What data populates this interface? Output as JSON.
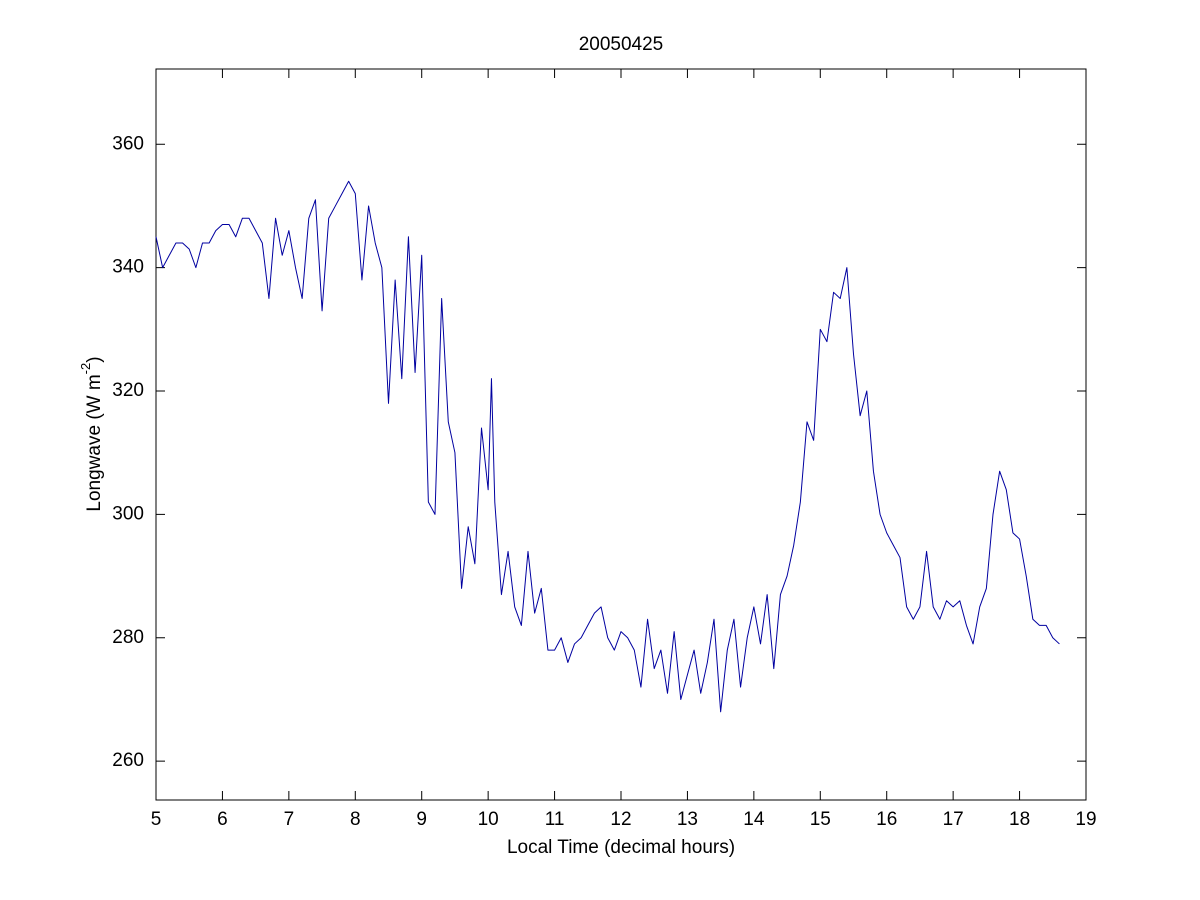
{
  "chart_data": {
    "type": "line",
    "title": "20050425",
    "xlabel": "Local Time (decimal hours)",
    "ylabel": [
      "Longwave (W m",
      "-2",
      ")"
    ],
    "xlim": [
      5,
      19
    ],
    "ylim": [
      253.7,
      372.2
    ],
    "xticks": [
      5,
      6,
      7,
      8,
      9,
      10,
      11,
      12,
      13,
      14,
      15,
      16,
      17,
      18,
      19
    ],
    "yticks": [
      260,
      280,
      300,
      320,
      340,
      360
    ],
    "grid": false,
    "x": [
      5.0,
      5.1,
      5.2,
      5.3,
      5.4,
      5.5,
      5.6,
      5.7,
      5.8,
      5.9,
      6.0,
      6.1,
      6.2,
      6.3,
      6.4,
      6.5,
      6.6,
      6.7,
      6.8,
      6.9,
      7.0,
      7.1,
      7.2,
      7.3,
      7.4,
      7.5,
      7.6,
      7.7,
      7.8,
      7.9,
      8.0,
      8.1,
      8.2,
      8.3,
      8.4,
      8.5,
      8.6,
      8.7,
      8.8,
      8.9,
      9.0,
      9.1,
      9.2,
      9.3,
      9.4,
      9.5,
      9.6,
      9.7,
      9.8,
      9.9,
      10.0,
      10.05,
      10.1,
      10.2,
      10.3,
      10.4,
      10.5,
      10.6,
      10.7,
      10.8,
      10.9,
      11.0,
      11.1,
      11.2,
      11.3,
      11.4,
      11.5,
      11.6,
      11.7,
      11.8,
      11.9,
      12.0,
      12.1,
      12.2,
      12.3,
      12.4,
      12.5,
      12.6,
      12.7,
      12.8,
      12.9,
      13.0,
      13.1,
      13.2,
      13.3,
      13.4,
      13.5,
      13.6,
      13.7,
      13.8,
      13.9,
      14.0,
      14.1,
      14.2,
      14.3,
      14.4,
      14.5,
      14.6,
      14.7,
      14.8,
      14.9,
      15.0,
      15.1,
      15.2,
      15.3,
      15.4,
      15.5,
      15.6,
      15.7,
      15.8,
      15.9,
      16.0,
      16.1,
      16.2,
      16.3,
      16.4,
      16.5,
      16.6,
      16.7,
      16.8,
      16.9,
      17.0,
      17.1,
      17.2,
      17.3,
      17.4,
      17.5,
      17.6,
      17.7,
      17.8,
      17.9,
      18.0,
      18.1,
      18.2,
      18.3,
      18.4,
      18.5,
      18.6
    ],
    "series": [
      {
        "color": "#0000a0",
        "values": [
          345,
          340,
          342,
          344,
          344,
          343,
          340,
          344,
          344,
          346,
          347,
          347,
          345,
          348,
          348,
          346,
          344,
          335,
          348,
          342,
          346,
          340,
          335,
          348,
          351,
          333,
          348,
          350,
          352,
          354,
          352,
          338,
          350,
          344,
          340,
          318,
          338,
          322,
          345,
          323,
          342,
          302,
          300,
          335,
          315,
          310,
          288,
          298,
          292,
          314,
          304,
          322,
          302,
          287,
          294,
          285,
          282,
          294,
          284,
          288,
          278,
          278,
          280,
          276,
          279,
          280,
          282,
          284,
          285,
          280,
          278,
          281,
          280,
          278,
          272,
          283,
          275,
          278,
          271,
          281,
          270,
          274,
          278,
          271,
          276,
          283,
          268,
          278,
          283,
          272,
          280,
          285,
          279,
          287,
          275,
          287,
          290,
          295,
          302,
          315,
          312,
          330,
          328,
          336,
          335,
          340,
          326,
          316,
          320,
          307,
          300,
          297,
          295,
          293,
          285,
          283,
          285,
          294,
          285,
          283,
          286,
          285,
          286,
          282,
          279,
          285,
          288,
          300,
          307,
          304,
          297,
          296,
          290,
          283,
          282,
          282,
          280,
          279
        ]
      }
    ]
  }
}
